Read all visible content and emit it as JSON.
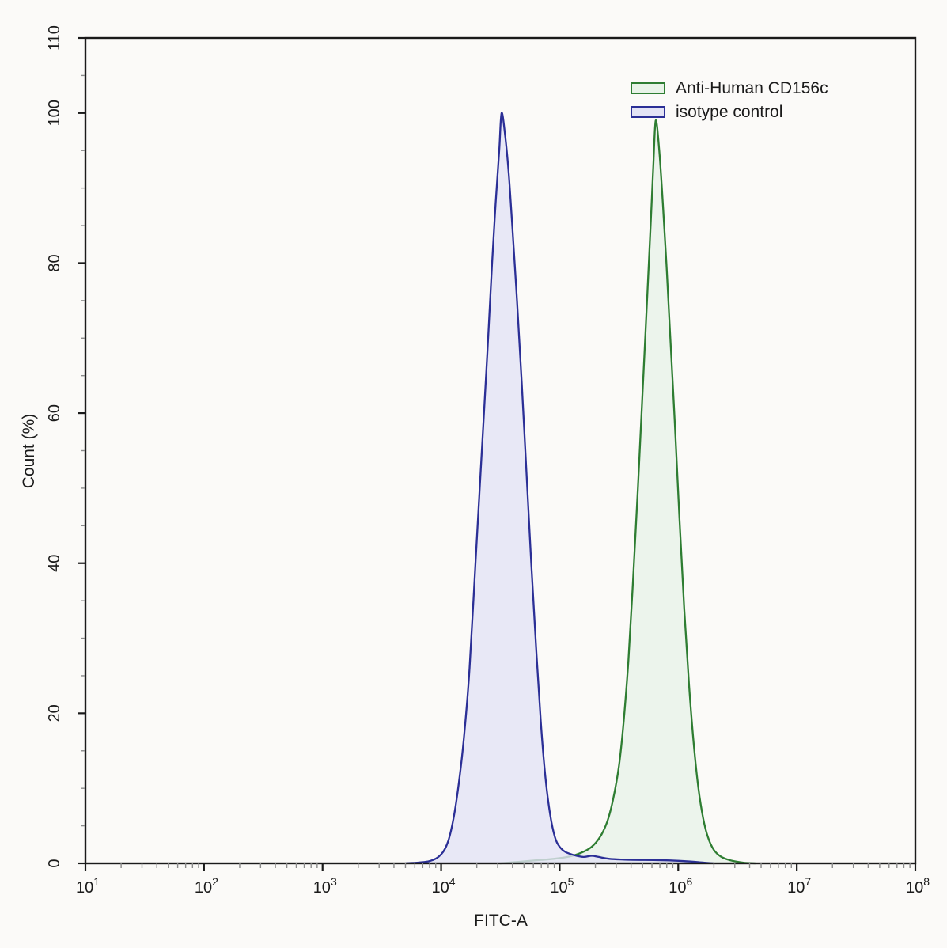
{
  "page": {
    "background_color": "#fbfaf8",
    "axis_color": "#1a1a1a",
    "minor_tick_color": "#8a8a8a"
  },
  "chart_data": {
    "type": "area",
    "subtype": "flow-cytometry-histogram-overlay",
    "title": "",
    "xlabel": "FITC-A",
    "ylabel": "Count (%)",
    "x_scale": "log10",
    "x_tick_label_base": "10",
    "x_major_tick_exponents": [
      1,
      2,
      3,
      4,
      5,
      6,
      7,
      8
    ],
    "x_range_exponents": [
      1,
      8
    ],
    "y_range": [
      0,
      110
    ],
    "y_major_ticks": [
      0,
      20,
      40,
      60,
      80,
      100,
      110
    ],
    "y_minor_tick_step": 5,
    "grid": "off",
    "legend_position": "top-right-inside",
    "series": [
      {
        "name": "Anti-Human CD156c",
        "stroke": "#2e7d32",
        "fill": "#e8f3e8",
        "fill_opacity": 0.8,
        "peak": {
          "fitc_a": 650000,
          "count_pct": 99
        },
        "points_logx_pct": [
          [
            4.5,
            0
          ],
          [
            4.65,
            0.2
          ],
          [
            4.8,
            0.4
          ],
          [
            4.95,
            0.6
          ],
          [
            5.08,
            0.9
          ],
          [
            5.18,
            1.4
          ],
          [
            5.27,
            2.2
          ],
          [
            5.34,
            3.5
          ],
          [
            5.4,
            5.5
          ],
          [
            5.45,
            8.5
          ],
          [
            5.5,
            13
          ],
          [
            5.54,
            19
          ],
          [
            5.58,
            27
          ],
          [
            5.62,
            38
          ],
          [
            5.66,
            50
          ],
          [
            5.7,
            63
          ],
          [
            5.74,
            76
          ],
          [
            5.77,
            86
          ],
          [
            5.79,
            93
          ],
          [
            5.81,
            99
          ],
          [
            5.84,
            95
          ],
          [
            5.87,
            88
          ],
          [
            5.9,
            80
          ],
          [
            5.93,
            71
          ],
          [
            5.97,
            59
          ],
          [
            6.01,
            46
          ],
          [
            6.05,
            34
          ],
          [
            6.09,
            24
          ],
          [
            6.13,
            16
          ],
          [
            6.17,
            10
          ],
          [
            6.21,
            6
          ],
          [
            6.25,
            3.5
          ],
          [
            6.3,
            1.8
          ],
          [
            6.36,
            0.9
          ],
          [
            6.44,
            0.4
          ],
          [
            6.55,
            0.1
          ],
          [
            6.65,
            0
          ]
        ]
      },
      {
        "name": "isotype control",
        "stroke": "#2b2f96",
        "fill": "#e3e3f5",
        "fill_opacity": 0.8,
        "peak": {
          "fitc_a": 33000,
          "count_pct": 100
        },
        "points_logx_pct": [
          [
            3.7,
            0
          ],
          [
            3.9,
            0.3
          ],
          [
            4.0,
            1.2
          ],
          [
            4.06,
            3
          ],
          [
            4.11,
            6.5
          ],
          [
            4.16,
            12
          ],
          [
            4.2,
            18
          ],
          [
            4.24,
            26
          ],
          [
            4.29,
            40
          ],
          [
            4.34,
            54
          ],
          [
            4.39,
            68
          ],
          [
            4.43,
            80
          ],
          [
            4.46,
            88
          ],
          [
            4.49,
            95
          ],
          [
            4.51,
            100
          ],
          [
            4.54,
            97
          ],
          [
            4.57,
            92
          ],
          [
            4.6,
            85
          ],
          [
            4.64,
            75
          ],
          [
            4.68,
            64
          ],
          [
            4.72,
            52
          ],
          [
            4.76,
            40
          ],
          [
            4.8,
            29
          ],
          [
            4.84,
            19
          ],
          [
            4.88,
            11.5
          ],
          [
            4.92,
            6.5
          ],
          [
            4.96,
            3.5
          ],
          [
            5.0,
            2.2
          ],
          [
            5.05,
            1.5
          ],
          [
            5.12,
            1.1
          ],
          [
            5.2,
            0.85
          ],
          [
            5.27,
            1.0
          ],
          [
            5.33,
            0.85
          ],
          [
            5.42,
            0.6
          ],
          [
            5.55,
            0.5
          ],
          [
            5.72,
            0.45
          ],
          [
            5.9,
            0.4
          ],
          [
            6.05,
            0.3
          ],
          [
            6.18,
            0.15
          ],
          [
            6.3,
            0
          ]
        ]
      }
    ]
  }
}
